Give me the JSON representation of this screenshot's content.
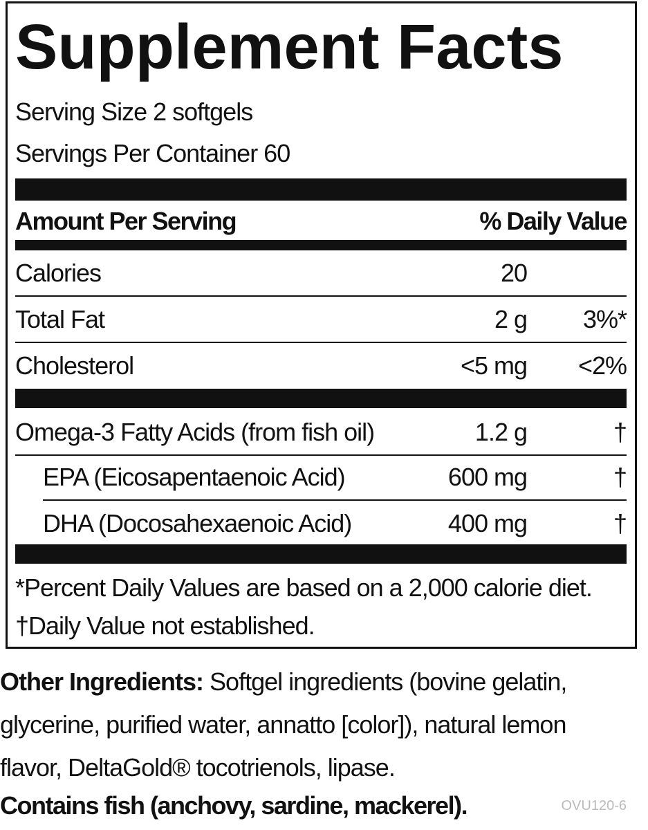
{
  "title": "Supplement Facts",
  "serving_size": "Serving Size 2 softgels",
  "servings_per_container": "Servings Per Container 60",
  "header": {
    "amount": "Amount Per Serving",
    "daily_value": "% Daily Value"
  },
  "rows": [
    {
      "name": "Calories",
      "amount": "20"
    },
    {
      "name": "Total Fat",
      "amount": "2 g",
      "dv": "3%*"
    },
    {
      "name": "Cholesterol",
      "amount": "<5 mg",
      "dv": "<2%"
    }
  ],
  "fatty_acids": {
    "name": "Omega-3 Fatty Acids (from fish oil)",
    "amount": "1.2 g",
    "dv": "†",
    "components": [
      {
        "name": "EPA (Eicosapentaenoic Acid)",
        "amount": "600 mg",
        "dv": "†"
      },
      {
        "name": "DHA (Docosahexaenoic Acid)",
        "amount": "400 mg",
        "dv": "†"
      }
    ]
  },
  "footnotes": [
    "*Percent Daily Values are based on a 2,000 calorie diet.",
    "†Daily Value not established."
  ],
  "other_ingredients": {
    "label": "Other Ingredients:",
    "text": "Softgel ingredients (bovine gelatin, glycerine, purified water, annatto [color]), natural lemon flavor, DeltaGold® tocotrienols, lipase."
  },
  "contains": "Contains fish (anchovy, sardine, mackerel).",
  "code": "OVU120-6"
}
